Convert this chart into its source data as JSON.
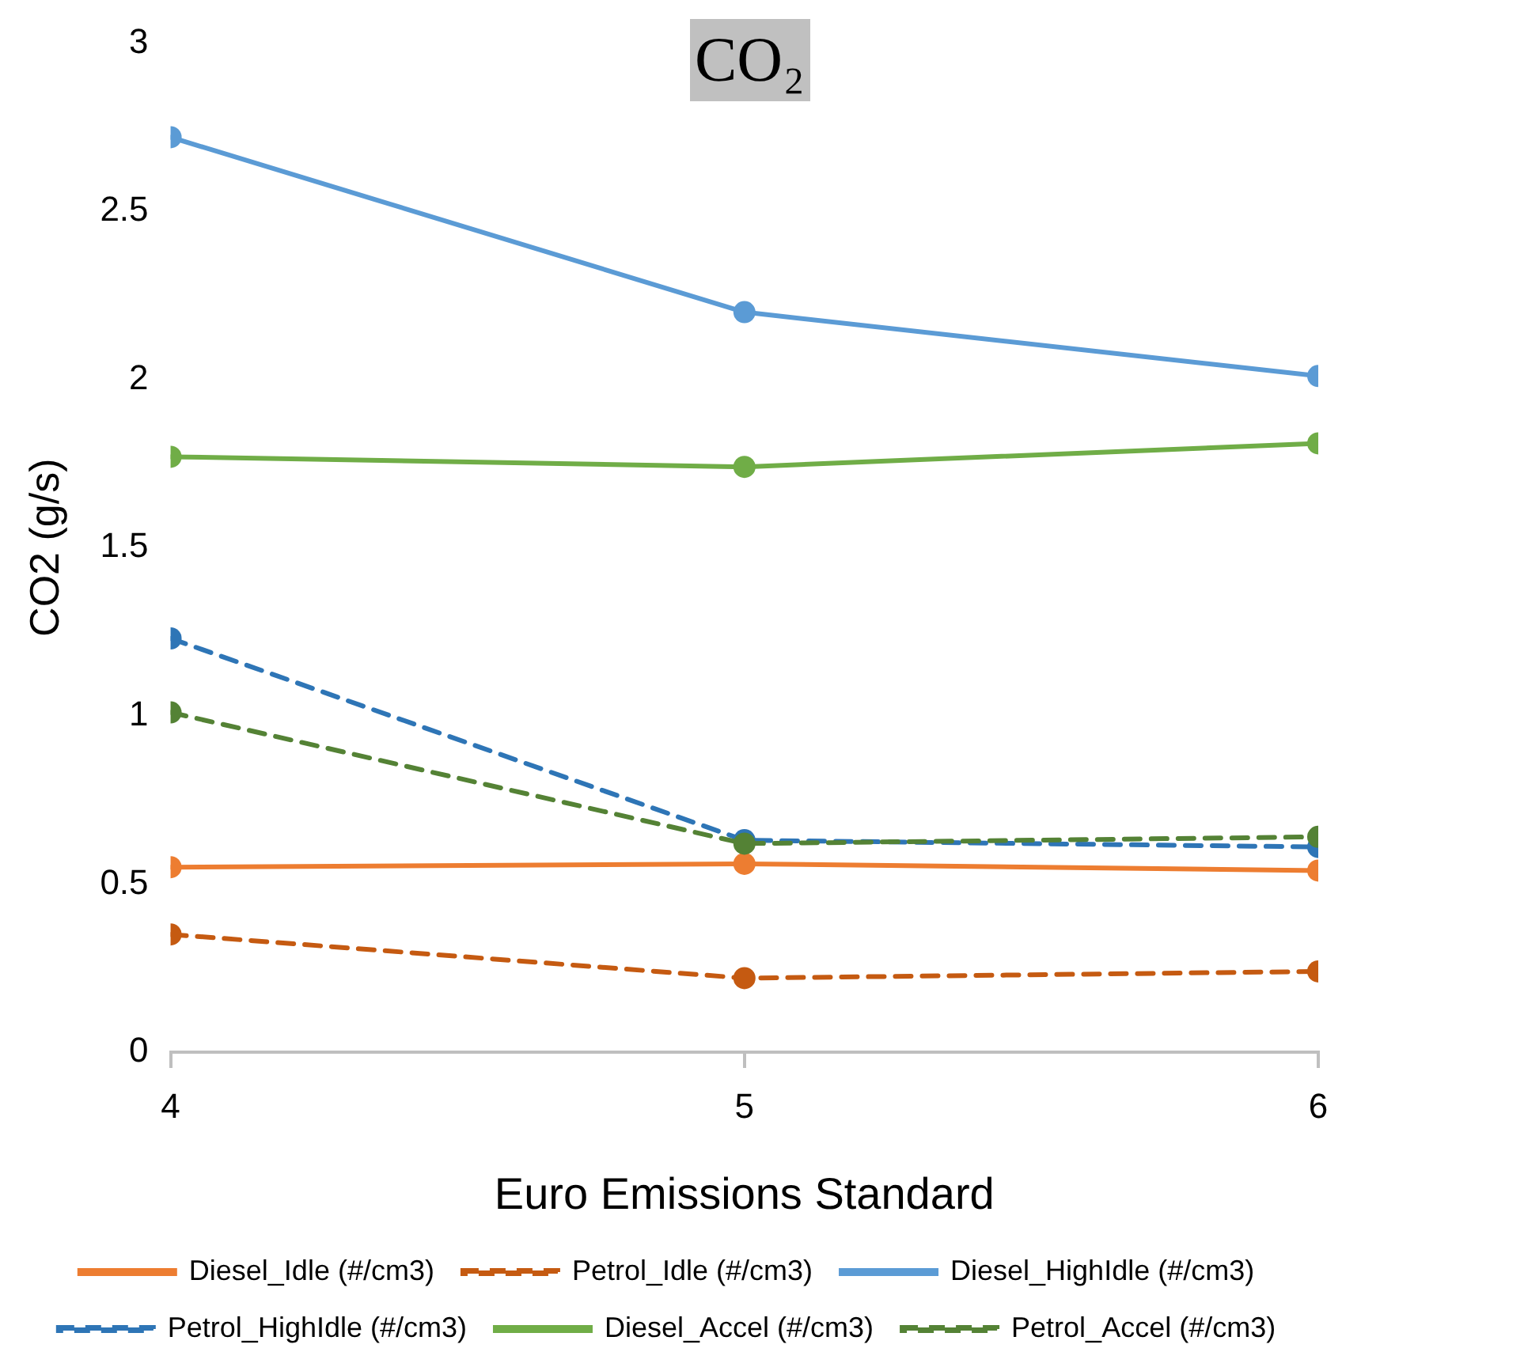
{
  "chart_data": {
    "type": "line",
    "title": "CO₂",
    "xlabel": "Euro Emissions Standard",
    "ylabel": "CO2 (g/s)",
    "x": [
      4,
      5,
      6
    ],
    "xlim": [
      4,
      6
    ],
    "xticks": [
      4,
      5,
      6
    ],
    "ylim": [
      0,
      3
    ],
    "yticks": [
      0,
      0.5,
      1,
      1.5,
      2,
      2.5,
      3
    ],
    "grid": false,
    "legend": "bottom",
    "marker": "circle",
    "series": [
      {
        "name": "Diesel_Idle (#/cm3)",
        "color": "#ed7d31",
        "values": [
          0.55,
          0.56,
          0.54
        ],
        "line_style": "solid"
      },
      {
        "name": "Petrol_Idle (#/cm3)",
        "color": "#c55a11",
        "values": [
          0.35,
          0.22,
          0.24
        ],
        "line_style": "dashed"
      },
      {
        "name": "Diesel_HighIdle (#/cm3)",
        "color": "#5b9bd5",
        "values": [
          2.72,
          2.2,
          2.01
        ],
        "line_style": "solid"
      },
      {
        "name": "Petrol_HighIdle (#/cm3)",
        "color": "#2e75b6",
        "values": [
          1.23,
          0.63,
          0.61
        ],
        "line_style": "dashed"
      },
      {
        "name": "Diesel_Accel (#/cm3)",
        "color": "#70ad47",
        "values": [
          1.77,
          1.74,
          1.81
        ],
        "line_style": "solid"
      },
      {
        "name": "Petrol_Accel (#/cm3)",
        "color": "#548235",
        "values": [
          1.01,
          0.62,
          0.64
        ],
        "line_style": "dashed"
      }
    ]
  }
}
